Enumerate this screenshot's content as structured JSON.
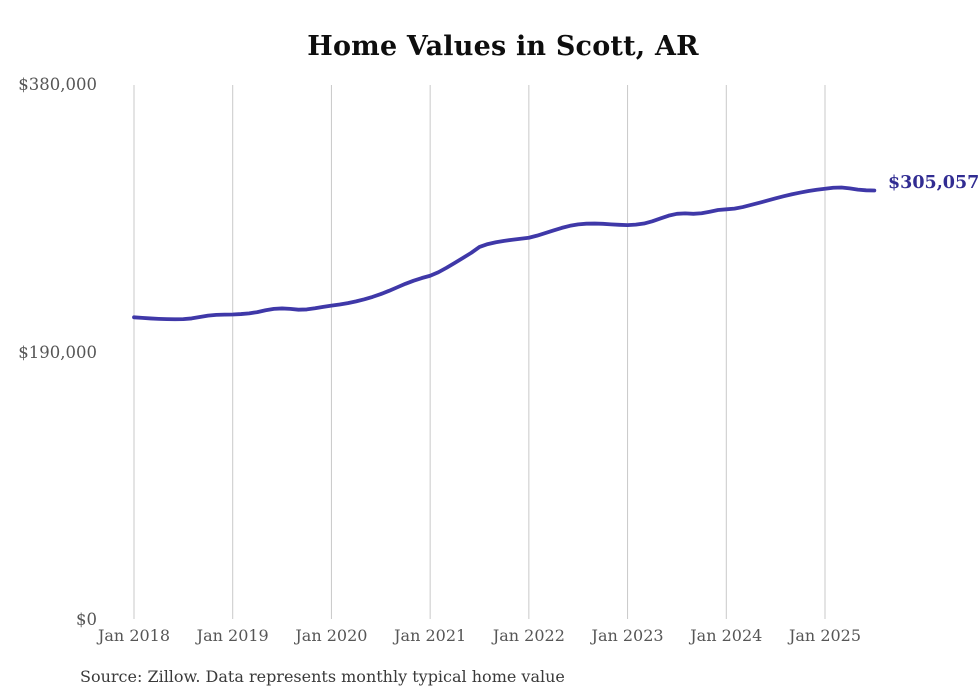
{
  "title": "Home Values in Scott, AR",
  "source_note": "Source: Zillow. Data represents monthly typical home value",
  "end_label": "$305,057",
  "colors": {
    "line": "#3f38a8",
    "end_label": "#312c92",
    "gridline": "#c9c9c9",
    "axis_text": "#565656",
    "title_text": "#0e0e0e",
    "source_text": "#3a3a3a",
    "background": "#ffffff"
  },
  "chart_data": {
    "type": "line",
    "title": "Home Values in Scott, AR",
    "xlabel": "",
    "ylabel": "",
    "ylim": [
      0,
      380000
    ],
    "grid": "vertical-only",
    "legend": "none",
    "frequency": "monthly",
    "x": [
      "2018-01",
      "2018-02",
      "2018-03",
      "2018-04",
      "2018-05",
      "2018-06",
      "2018-07",
      "2018-08",
      "2018-09",
      "2018-10",
      "2018-11",
      "2018-12",
      "2019-01",
      "2019-02",
      "2019-03",
      "2019-04",
      "2019-05",
      "2019-06",
      "2019-07",
      "2019-08",
      "2019-09",
      "2019-10",
      "2019-11",
      "2019-12",
      "2020-01",
      "2020-02",
      "2020-03",
      "2020-04",
      "2020-05",
      "2020-06",
      "2020-07",
      "2020-08",
      "2020-09",
      "2020-10",
      "2020-11",
      "2020-12",
      "2021-01",
      "2021-02",
      "2021-03",
      "2021-04",
      "2021-05",
      "2021-06",
      "2021-07",
      "2021-08",
      "2021-09",
      "2021-10",
      "2021-11",
      "2021-12",
      "2022-01",
      "2022-02",
      "2022-03",
      "2022-04",
      "2022-05",
      "2022-06",
      "2022-07",
      "2022-08",
      "2022-09",
      "2022-10",
      "2022-11",
      "2022-12",
      "2023-01",
      "2023-02",
      "2023-03",
      "2023-04",
      "2023-05",
      "2023-06",
      "2023-07",
      "2023-08",
      "2023-09",
      "2023-10",
      "2023-11",
      "2023-12",
      "2024-01",
      "2024-02",
      "2024-03",
      "2024-04",
      "2024-05",
      "2024-06",
      "2024-07",
      "2024-08",
      "2024-09",
      "2024-10",
      "2024-11",
      "2024-12",
      "2025-01",
      "2025-02",
      "2025-03",
      "2025-04",
      "2025-05",
      "2025-06",
      "2025-07"
    ],
    "series": [
      {
        "name": "Typical home value",
        "values": [
          215000,
          214600,
          214200,
          213900,
          213700,
          213600,
          213700,
          214200,
          215200,
          216200,
          216700,
          216900,
          217000,
          217300,
          217800,
          218700,
          220000,
          221000,
          221300,
          221000,
          220400,
          220600,
          221400,
          222400,
          223300,
          224100,
          225100,
          226300,
          227800,
          229500,
          231500,
          233800,
          236300,
          238800,
          241000,
          242900,
          244500,
          247000,
          250200,
          253700,
          257200,
          260800,
          265000,
          267000,
          268300,
          269300,
          270100,
          270800,
          271500,
          273000,
          274800,
          276700,
          278500,
          280000,
          281000,
          281500,
          281600,
          281400,
          281000,
          280700,
          280500,
          280800,
          281600,
          283200,
          285200,
          287200,
          288500,
          288800,
          288500,
          288900,
          290000,
          291200,
          291700,
          292200,
          293300,
          294800,
          296300,
          297900,
          299500,
          301000,
          302400,
          303600,
          304700,
          305600,
          306300,
          307000,
          307200,
          306600,
          305700,
          305200,
          305057
        ]
      }
    ],
    "x_tick_labels": [
      "Jan 2018",
      "Jan 2019",
      "Jan 2020",
      "Jan 2021",
      "Jan 2022",
      "Jan 2023",
      "Jan 2024",
      "Jan 2025"
    ],
    "y_ticks": [
      {
        "label": "$380,000",
        "value": 380000
      },
      {
        "label": "$190,000",
        "value": 190000
      },
      {
        "label": "$0",
        "value": 0
      }
    ],
    "last_point_label": "$305,057",
    "last_point_value": 305057
  }
}
